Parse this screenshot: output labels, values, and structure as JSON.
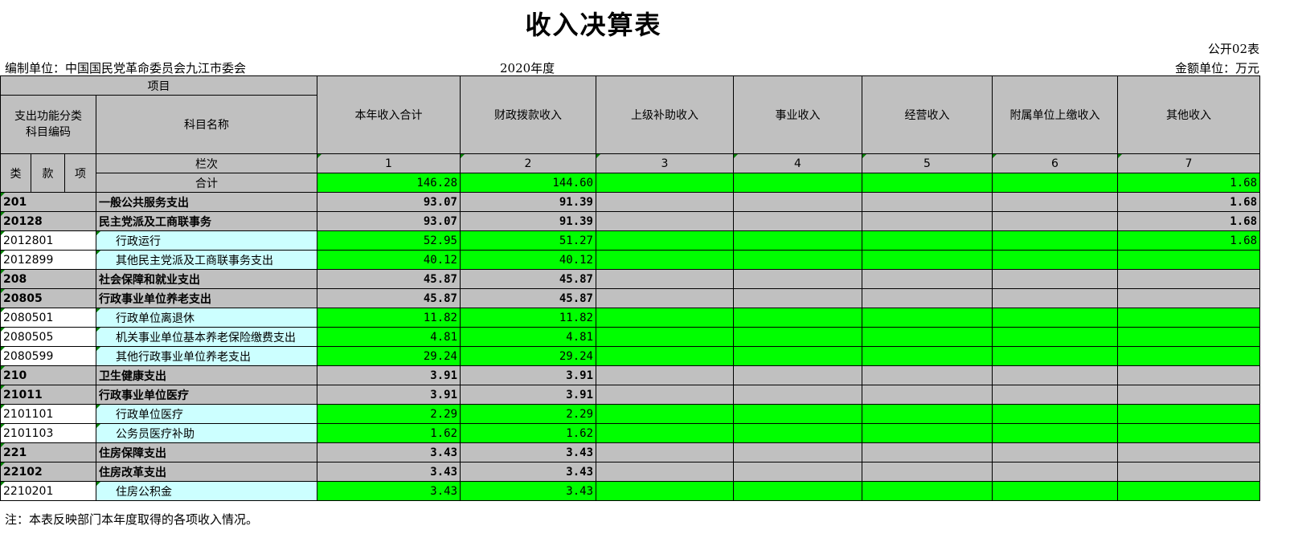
{
  "title": "收入决算表",
  "form_no": "公开02表",
  "unit_label": "编制单位：中国国民党革命委员会九江市委会",
  "year": "2020年度",
  "amount_unit": "金额单位：万元",
  "header": {
    "item": "项目",
    "code": "支出功能分类\n科目编码",
    "code_line1": "支出功能分类",
    "code_line2": "科目编码",
    "name": "科目名称",
    "columns": [
      "本年收入合计",
      "财政拨款收入",
      "上级补助收入",
      "事业收入",
      "经营收入",
      "附属单位上缴收入",
      "其他收入"
    ],
    "lei": "类",
    "kuan": "款",
    "xiang": "项",
    "lanci": "栏次",
    "col_numbers": [
      "1",
      "2",
      "3",
      "4",
      "5",
      "6",
      "7"
    ],
    "total_label": "合计",
    "total_values": [
      "146.28",
      "144.60",
      "",
      "",
      "",
      "",
      "1.68"
    ]
  },
  "rows": [
    {
      "code": "201",
      "name": "一般公共服务支出",
      "type": "group",
      "values": [
        "93.07",
        "91.39",
        "",
        "",
        "",
        "",
        "1.68"
      ]
    },
    {
      "code": "20128",
      "name": "民主党派及工商联事务",
      "type": "group",
      "values": [
        "93.07",
        "91.39",
        "",
        "",
        "",
        "",
        "1.68"
      ]
    },
    {
      "code": "2012801",
      "name": "行政运行",
      "type": "item",
      "values": [
        "52.95",
        "51.27",
        "",
        "",
        "",
        "",
        "1.68"
      ]
    },
    {
      "code": "2012899",
      "name": "其他民主党派及工商联事务支出",
      "type": "item",
      "values": [
        "40.12",
        "40.12",
        "",
        "",
        "",
        "",
        ""
      ]
    },
    {
      "code": "208",
      "name": "社会保障和就业支出",
      "type": "group",
      "values": [
        "45.87",
        "45.87",
        "",
        "",
        "",
        "",
        ""
      ]
    },
    {
      "code": "20805",
      "name": "行政事业单位养老支出",
      "type": "group",
      "values": [
        "45.87",
        "45.87",
        "",
        "",
        "",
        "",
        ""
      ]
    },
    {
      "code": "2080501",
      "name": "行政单位离退休",
      "type": "item",
      "values": [
        "11.82",
        "11.82",
        "",
        "",
        "",
        "",
        ""
      ]
    },
    {
      "code": "2080505",
      "name": "机关事业单位基本养老保险缴费支出",
      "type": "item",
      "values": [
        "4.81",
        "4.81",
        "",
        "",
        "",
        "",
        ""
      ]
    },
    {
      "code": "2080599",
      "name": "其他行政事业单位养老支出",
      "type": "item",
      "values": [
        "29.24",
        "29.24",
        "",
        "",
        "",
        "",
        ""
      ]
    },
    {
      "code": "210",
      "name": "卫生健康支出",
      "type": "group",
      "values": [
        "3.91",
        "3.91",
        "",
        "",
        "",
        "",
        ""
      ]
    },
    {
      "code": "21011",
      "name": "行政事业单位医疗",
      "type": "group",
      "values": [
        "3.91",
        "3.91",
        "",
        "",
        "",
        "",
        ""
      ]
    },
    {
      "code": "2101101",
      "name": "行政单位医疗",
      "type": "item",
      "values": [
        "2.29",
        "2.29",
        "",
        "",
        "",
        "",
        ""
      ]
    },
    {
      "code": "2101103",
      "name": "公务员医疗补助",
      "type": "item",
      "values": [
        "1.62",
        "1.62",
        "",
        "",
        "",
        "",
        ""
      ]
    },
    {
      "code": "221",
      "name": "住房保障支出",
      "type": "group",
      "values": [
        "3.43",
        "3.43",
        "",
        "",
        "",
        "",
        ""
      ]
    },
    {
      "code": "22102",
      "name": "住房改革支出",
      "type": "group",
      "values": [
        "3.43",
        "3.43",
        "",
        "",
        "",
        "",
        ""
      ]
    },
    {
      "code": "2210201",
      "name": "住房公积金",
      "type": "item",
      "values": [
        "3.43",
        "3.43",
        "",
        "",
        "",
        "",
        ""
      ]
    }
  ],
  "note": "注：本表反映部门本年度取得的各项收入情况。",
  "colors": {
    "header_gray": "#c0c0c0",
    "value_green": "#00ff00",
    "name_cyan": "#ccffff"
  }
}
